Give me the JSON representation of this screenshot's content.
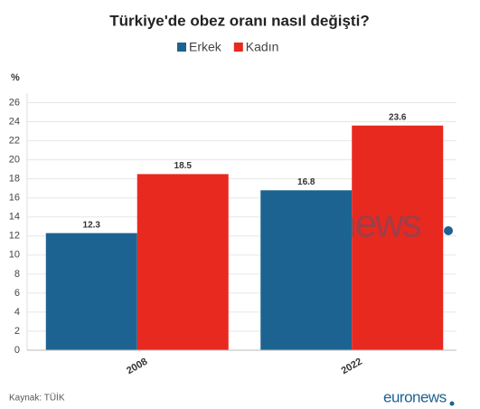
{
  "chart_data": {
    "type": "bar",
    "title": "Türkiye'de obez oranı nasıl değişti?",
    "y_label": "%",
    "categories": [
      "2008",
      "2022"
    ],
    "series": [
      {
        "name": "Erkek",
        "color": "#1d6391",
        "values": [
          12.3,
          16.8
        ]
      },
      {
        "name": "Kadın",
        "color": "#e8291f",
        "values": [
          18.5,
          23.6
        ]
      }
    ],
    "ylim": [
      0,
      27
    ],
    "yticks": [
      0,
      2,
      4,
      6,
      8,
      10,
      12,
      14,
      16,
      18,
      20,
      22,
      24,
      26
    ],
    "grid": true,
    "source": "Kaynak: TÜİK",
    "watermark": "euronews",
    "logo": "euronews"
  }
}
